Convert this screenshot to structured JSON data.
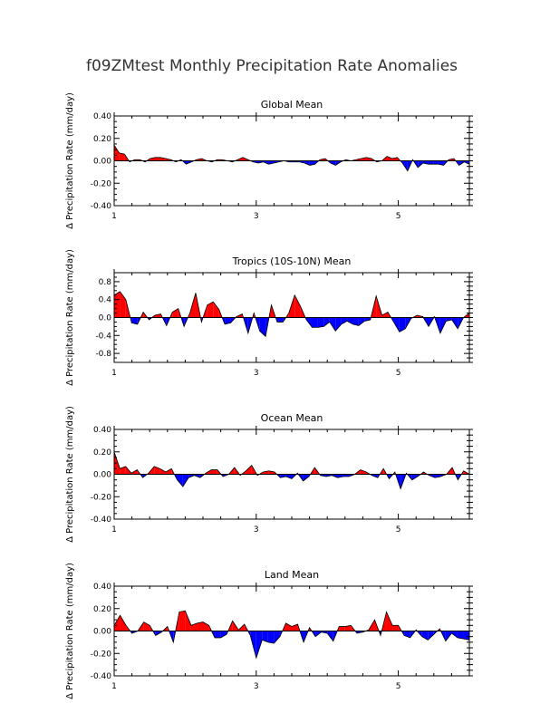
{
  "figure_title": "f09ZMtest Monthly Precipitation Rate Anomalies",
  "colors": {
    "positive": "#ff0000",
    "negative": "#0000ff",
    "axis": "#000000"
  },
  "chart_data": [
    {
      "type": "area",
      "title": "Global Mean",
      "ylabel": "Δ Precipitation Rate (mm/day)",
      "xlim": [
        1,
        6.0
      ],
      "ylim": [
        -0.4,
        0.4
      ],
      "yticks": [
        -0.4,
        -0.2,
        0.0,
        0.2,
        0.4
      ],
      "ytick_labels": [
        "-0.40",
        "-0.20",
        "0.00",
        "0.20",
        "0.40"
      ],
      "xticks": [
        1,
        3,
        5
      ],
      "xtick_labels": [
        "1",
        "3",
        "5"
      ],
      "values": [
        0.14,
        0.07,
        0.06,
        -0.01,
        0.01,
        0.01,
        -0.01,
        0.02,
        0.03,
        0.03,
        0.02,
        0.01,
        -0.01,
        0.01,
        -0.03,
        -0.01,
        0.01,
        0.02,
        0.0,
        -0.01,
        0.01,
        0.01,
        0.0,
        -0.01,
        0.01,
        0.03,
        0.01,
        -0.01,
        -0.02,
        -0.01,
        -0.03,
        -0.02,
        -0.01,
        0.0,
        -0.01,
        -0.01,
        -0.01,
        -0.02,
        -0.04,
        -0.03,
        0.01,
        0.02,
        -0.02,
        -0.04,
        -0.01,
        0.01,
        0.0,
        0.01,
        0.02,
        0.03,
        0.02,
        -0.01,
        0.0,
        0.04,
        0.02,
        0.03,
        -0.02,
        -0.09,
        0.01,
        -0.06,
        -0.02,
        -0.03,
        -0.03,
        -0.03,
        -0.04,
        0.01,
        0.02,
        -0.04,
        -0.01,
        -0.03
      ]
    },
    {
      "type": "area",
      "title": "Tropics (10S-10N) Mean",
      "ylabel": "Δ Precipitation Rate (mm/day)",
      "xlim": [
        1,
        6.0
      ],
      "ylim": [
        -1.0,
        1.0
      ],
      "yticks": [
        -0.8,
        -0.4,
        0.0,
        0.4,
        0.8
      ],
      "ytick_labels": [
        "-0.8",
        "-0.4",
        "0.0",
        "0.4",
        "0.8"
      ],
      "xticks": [
        1,
        3,
        5
      ],
      "xtick_labels": [
        "1",
        "3",
        "5"
      ],
      "values": [
        0.5,
        0.58,
        0.4,
        -0.12,
        -0.15,
        0.12,
        -0.05,
        0.05,
        0.08,
        -0.18,
        0.12,
        0.2,
        -0.2,
        0.1,
        0.55,
        -0.1,
        0.28,
        0.35,
        0.18,
        -0.15,
        -0.12,
        0.02,
        0.08,
        -0.35,
        0.1,
        -0.3,
        -0.42,
        0.28,
        -0.1,
        -0.1,
        0.1,
        0.5,
        0.25,
        -0.05,
        -0.22,
        -0.22,
        -0.2,
        -0.1,
        -0.3,
        -0.15,
        -0.08,
        -0.15,
        -0.18,
        -0.08,
        -0.05,
        0.48,
        0.05,
        0.12,
        -0.1,
        -0.32,
        -0.25,
        -0.02,
        0.05,
        0.02,
        -0.2,
        0.02,
        -0.35,
        -0.08,
        -0.05,
        -0.25,
        0.0,
        0.1
      ]
    },
    {
      "type": "area",
      "title": "Ocean Mean",
      "ylabel": "Δ Precipitation Rate (mm/day)",
      "xlim": [
        1,
        6.0
      ],
      "ylim": [
        -0.4,
        0.4
      ],
      "yticks": [
        -0.4,
        -0.2,
        0.0,
        0.2,
        0.4
      ],
      "ytick_labels": [
        "-0.40",
        "-0.20",
        "0.00",
        "0.20",
        "0.40"
      ],
      "xticks": [
        1,
        3,
        5
      ],
      "xtick_labels": [
        "1",
        "3",
        "5"
      ],
      "values": [
        0.2,
        0.05,
        0.07,
        0.01,
        0.04,
        -0.03,
        0.01,
        0.07,
        0.05,
        0.02,
        0.05,
        -0.05,
        -0.11,
        -0.03,
        -0.01,
        -0.03,
        0.01,
        0.04,
        0.04,
        -0.02,
        0.0,
        0.06,
        -0.01,
        0.03,
        0.08,
        -0.01,
        0.02,
        0.03,
        0.02,
        -0.03,
        -0.02,
        -0.04,
        0.01,
        -0.06,
        -0.02,
        0.06,
        -0.01,
        -0.02,
        -0.01,
        -0.03,
        -0.02,
        -0.02,
        0.0,
        0.04,
        0.02,
        -0.01,
        -0.03,
        0.05,
        -0.04,
        0.02,
        -0.13,
        0.01,
        -0.05,
        -0.02,
        0.02,
        -0.01,
        -0.03,
        -0.02,
        0.0,
        0.06,
        -0.05,
        0.03,
        0.0
      ]
    },
    {
      "type": "area",
      "title": "Land Mean",
      "ylabel": "Δ Precipitation Rate (mm/day)",
      "xlim": [
        1,
        6.0
      ],
      "ylim": [
        -0.4,
        0.4
      ],
      "yticks": [
        -0.4,
        -0.2,
        0.0,
        0.2,
        0.4
      ],
      "ytick_labels": [
        "-0.40",
        "-0.20",
        "0.00",
        "0.20",
        "0.40"
      ],
      "xticks": [
        1,
        3,
        5
      ],
      "xtick_labels": [
        "1",
        "3",
        "5"
      ],
      "values": [
        0.05,
        0.14,
        0.05,
        -0.02,
        0.0,
        0.08,
        0.05,
        -0.04,
        -0.01,
        0.04,
        -0.1,
        0.17,
        0.18,
        0.05,
        0.07,
        0.08,
        0.05,
        -0.06,
        -0.06,
        -0.03,
        0.09,
        0.01,
        0.06,
        -0.04,
        -0.24,
        -0.08,
        -0.1,
        -0.11,
        -0.05,
        0.07,
        0.04,
        0.06,
        -0.1,
        0.03,
        -0.05,
        -0.01,
        -0.02,
        -0.09,
        0.04,
        0.04,
        0.05,
        -0.02,
        -0.01,
        0.01,
        0.1,
        -0.04,
        0.17,
        0.05,
        0.05,
        -0.04,
        -0.06,
        0.01,
        -0.05,
        -0.08,
        -0.03,
        0.02,
        -0.09,
        -0.02,
        -0.06,
        -0.07,
        -0.08
      ]
    }
  ]
}
